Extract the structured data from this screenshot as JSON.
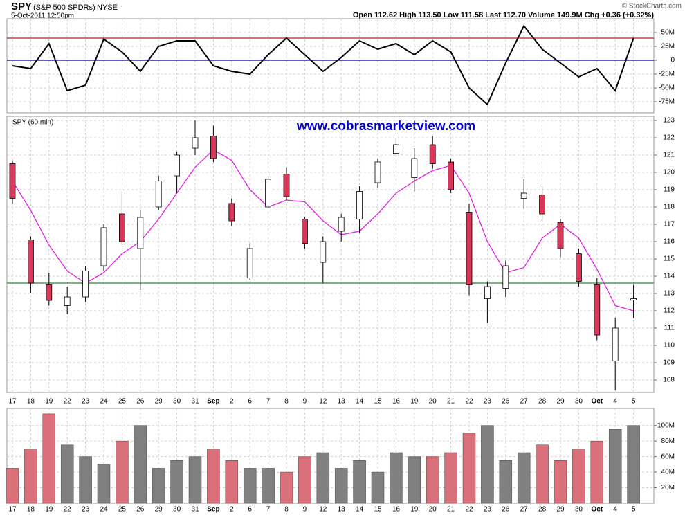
{
  "header": {
    "symbol": "SPY",
    "name": "(S&P 500 SPDRs)",
    "exchange": "NYSE",
    "datetime": "5-Oct-2011 12:50pm",
    "quote": "Open 112.62  High 113.50  Low 111.58  Last 112.70  Volume 149.9M  Chg +0.36 (+0.32%)",
    "copyright": "© StockCharts.com"
  },
  "chart_data": [
    {
      "type": "line",
      "color": "#000000",
      "values": [
        -10,
        -15,
        30,
        -55,
        -45,
        38,
        15,
        -20,
        25,
        35,
        35,
        -10,
        -20,
        -25,
        10,
        40,
        10,
        -20,
        5,
        35,
        20,
        30,
        10,
        35,
        15,
        -50,
        -80,
        -5,
        62,
        20,
        -5,
        -30,
        -15,
        -55,
        40
      ],
      "ylim": [
        -95,
        75
      ],
      "yticks": [
        {
          "value": 50,
          "label": "50M"
        },
        {
          "value": 25,
          "label": "25M"
        },
        0,
        {
          "value": -25,
          "label": "-25M"
        },
        {
          "value": -50,
          "label": "-50M"
        },
        {
          "value": -75,
          "label": "-75M"
        }
      ],
      "hlines": [
        {
          "value": 40,
          "color": "#b22222"
        },
        {
          "value": 0,
          "color": "#000080"
        }
      ],
      "grid": true
    },
    {
      "type": "candlestick",
      "title": "SPY (60 min)",
      "annotation": "www.cobrasmarketview.com",
      "categories": [
        "17",
        "18",
        "19",
        "22",
        "23",
        "24",
        "25",
        "26",
        "29",
        "30",
        "31",
        "Sep",
        "2",
        "6",
        "7",
        "8",
        "9",
        "12",
        "13",
        "14",
        "15",
        "16",
        "19",
        "20",
        "21",
        "22",
        "23",
        "26",
        "27",
        "28",
        "29",
        "30",
        "Oct",
        "4",
        "5"
      ],
      "open": [
        120.5,
        116.1,
        113.5,
        112.3,
        112.8,
        114.6,
        117.6,
        115.6,
        118.0,
        119.8,
        121.4,
        122.1,
        118.2,
        113.9,
        118.0,
        119.9,
        117.3,
        114.8,
        116.6,
        117.3,
        119.4,
        121.1,
        119.7,
        121.6,
        120.6,
        117.7,
        112.7,
        113.3,
        118.5,
        118.7,
        117.1,
        115.3,
        113.5,
        109.1,
        112.62
      ],
      "high": [
        120.7,
        116.3,
        114.2,
        113.4,
        114.6,
        117.0,
        118.9,
        117.8,
        119.8,
        121.2,
        123.0,
        122.7,
        118.5,
        115.9,
        119.8,
        120.3,
        117.4,
        116.3,
        117.6,
        119.2,
        120.8,
        122.0,
        121.4,
        122.1,
        120.8,
        118.2,
        113.7,
        114.9,
        119.6,
        119.2,
        117.3,
        115.6,
        113.9,
        111.6,
        113.5
      ],
      "low": [
        118.2,
        113.0,
        112.3,
        111.8,
        112.5,
        114.3,
        115.8,
        113.2,
        117.8,
        118.8,
        121.0,
        120.6,
        116.9,
        113.8,
        117.9,
        118.4,
        115.6,
        113.6,
        116.0,
        116.5,
        119.1,
        120.9,
        118.9,
        120.2,
        118.8,
        112.9,
        111.3,
        112.8,
        117.9,
        117.2,
        115.1,
        113.4,
        110.3,
        107.4,
        111.58
      ],
      "close": [
        118.5,
        113.6,
        112.6,
        112.8,
        114.3,
        116.8,
        116.0,
        117.4,
        119.5,
        121.0,
        122.0,
        120.8,
        117.2,
        115.6,
        119.6,
        118.6,
        115.9,
        116.0,
        117.4,
        118.9,
        120.6,
        121.6,
        120.8,
        120.5,
        119.0,
        113.5,
        113.4,
        114.6,
        118.8,
        117.6,
        115.6,
        113.7,
        110.6,
        111.0,
        112.7
      ],
      "ma": {
        "color": "#e020e0",
        "values": [
          119.5,
          117.8,
          115.8,
          114.3,
          113.6,
          114.2,
          115.3,
          116.0,
          117.3,
          118.8,
          120.3,
          121.3,
          120.7,
          119.0,
          118.0,
          118.4,
          118.3,
          117.2,
          116.4,
          116.6,
          117.6,
          118.8,
          119.5,
          120.1,
          120.4,
          118.8,
          116.0,
          114.2,
          114.5,
          116.2,
          117.0,
          116.2,
          114.4,
          112.3,
          112.0
        ]
      },
      "up_color": "#ffffff",
      "down_color": "#d9365a",
      "ylim": [
        107.28,
        123.24
      ],
      "yticks": [
        108,
        109,
        110,
        111,
        112,
        113,
        114,
        115,
        116,
        117,
        118,
        119,
        120,
        121,
        122,
        123
      ],
      "hlines": [
        {
          "value": 113.6,
          "color": "#2e8b2e"
        }
      ],
      "grid": true
    },
    {
      "type": "bar",
      "categories": [
        "17",
        "18",
        "19",
        "22",
        "23",
        "24",
        "25",
        "26",
        "29",
        "30",
        "31",
        "Sep",
        "2",
        "6",
        "7",
        "8",
        "9",
        "12",
        "13",
        "14",
        "15",
        "16",
        "19",
        "20",
        "21",
        "22",
        "23",
        "26",
        "27",
        "28",
        "29",
        "30",
        "Oct",
        "4",
        "5"
      ],
      "values": [
        45,
        70,
        115,
        75,
        60,
        50,
        80,
        100,
        45,
        55,
        60,
        70,
        55,
        45,
        45,
        40,
        60,
        65,
        45,
        55,
        40,
        65,
        60,
        60,
        65,
        90,
        100,
        55,
        65,
        75,
        55,
        70,
        80,
        95,
        100
      ],
      "up_color": "#808080",
      "down_color": "#d9707a",
      "ylim": [
        0,
        122
      ],
      "yticks": [
        {
          "value": 20,
          "label": "20M"
        },
        {
          "value": 40,
          "label": "40M"
        },
        {
          "value": 60,
          "label": "60M"
        },
        {
          "value": 80,
          "label": "80M"
        },
        {
          "value": 100,
          "label": "100M"
        }
      ],
      "grid": true
    }
  ]
}
